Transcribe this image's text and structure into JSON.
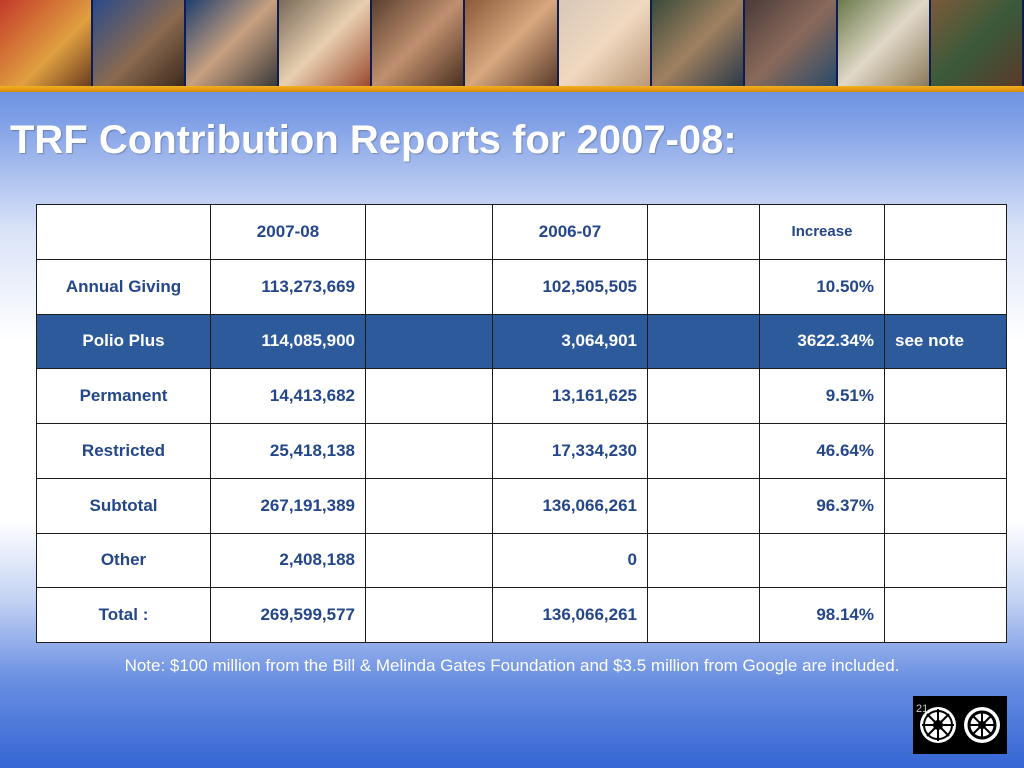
{
  "title": "TRF Contribution Reports for 2007-08:",
  "table": {
    "headers": [
      "",
      "2007-08",
      "",
      "2006-07",
      "",
      "Increase",
      ""
    ],
    "rows": [
      {
        "label": "Annual Giving",
        "y2007": "113,273,669",
        "y2006": "102,505,505",
        "increase": "10.50%",
        "note": ""
      },
      {
        "label": "Polio Plus",
        "y2007": "114,085,900",
        "y2006": "3,064,901",
        "increase": "3622.34%",
        "note": "see note"
      },
      {
        "label": "Permanent",
        "y2007": "14,413,682",
        "y2006": "13,161,625",
        "increase": "9.51%",
        "note": ""
      },
      {
        "label": "Restricted",
        "y2007": "25,418,138",
        "y2006": "17,334,230",
        "increase": "46.64%",
        "note": ""
      },
      {
        "label": "Subtotal",
        "y2007": "267,191,389",
        "y2006": "136,066,261",
        "increase": "96.37%",
        "note": ""
      },
      {
        "label": "Other",
        "y2007": "2,408,188",
        "y2006": "0",
        "increase": "",
        "note": ""
      },
      {
        "label": "Total :",
        "y2007": "269,599,577",
        "y2006": "136,066,261",
        "increase": "98.14%",
        "note": ""
      }
    ]
  },
  "note": "Note: $100 million from the Bill & Melinda Gates Foundation and $3.5 million from Google are included.",
  "page_number": "21",
  "colors": {
    "accent_orange": "#f06a0c",
    "highlight_row": "#2d5a9a",
    "text_blue": "#24478a"
  }
}
